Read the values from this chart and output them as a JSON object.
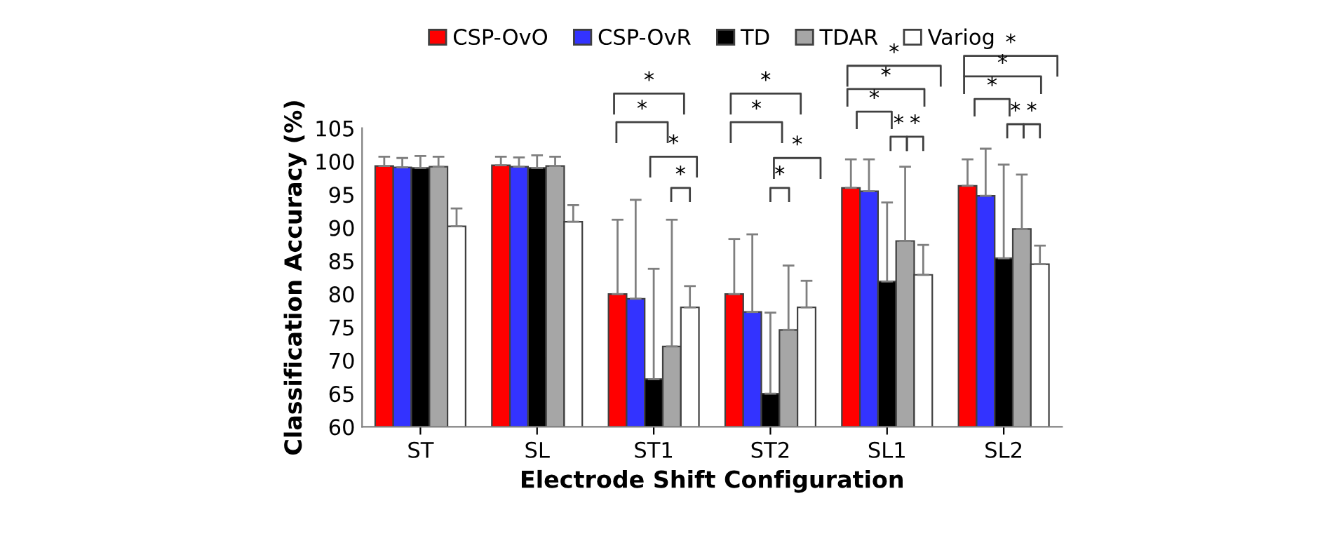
{
  "chart_data": {
    "type": "bar",
    "xlabel": "Electrode Shift Configuration",
    "ylabel": "Classification Accuracy (%)",
    "categories": [
      "ST",
      "SL",
      "ST1",
      "ST2",
      "SL1",
      "SL2"
    ],
    "series": [
      {
        "name": "CSP-OvO",
        "color": "#ff0000",
        "values": [
          99.3,
          99.4,
          80.0,
          80.0,
          96.0,
          96.3
        ],
        "errors": [
          [
            99.3,
            100.7
          ],
          [
            99.4,
            100.7
          ],
          [
            80.0,
            91.2
          ],
          [
            80.0,
            88.3
          ],
          [
            96.0,
            100.3
          ],
          [
            96.3,
            100.3
          ]
        ]
      },
      {
        "name": "CSP-OvR",
        "color": "#3333ff",
        "values": [
          99.1,
          99.2,
          79.3,
          77.3,
          95.5,
          94.8
        ],
        "errors": [
          [
            99.1,
            100.5
          ],
          [
            99.2,
            100.6
          ],
          [
            79.3,
            94.2
          ],
          [
            77.3,
            89.0
          ],
          [
            95.5,
            100.3
          ],
          [
            94.8,
            101.9
          ]
        ]
      },
      {
        "name": "TD",
        "color": "#000000",
        "values": [
          99.0,
          99.0,
          67.2,
          65.0,
          81.9,
          85.4
        ],
        "errors": [
          [
            99.0,
            100.8
          ],
          [
            99.0,
            100.9
          ],
          [
            67.2,
            83.8
          ],
          [
            65.0,
            77.2
          ],
          [
            81.9,
            93.8
          ],
          [
            85.4,
            99.5
          ]
        ]
      },
      {
        "name": "TDAR",
        "color": "#a6a6a6",
        "values": [
          99.2,
          99.3,
          72.1,
          74.6,
          88.0,
          89.8
        ],
        "errors": [
          [
            99.2,
            100.7
          ],
          [
            99.3,
            100.7
          ],
          [
            72.1,
            91.2
          ],
          [
            74.6,
            84.3
          ],
          [
            88.0,
            99.2
          ],
          [
            89.8,
            98.0
          ]
        ]
      },
      {
        "name": "Variog",
        "color": "#ffffff",
        "values": [
          90.2,
          90.9,
          78.0,
          78.0,
          82.9,
          84.5
        ],
        "errors": [
          [
            90.2,
            92.9
          ],
          [
            90.9,
            93.4
          ],
          [
            78.0,
            81.2
          ],
          [
            78.0,
            82.0
          ],
          [
            82.9,
            87.4
          ],
          [
            84.5,
            87.3
          ]
        ]
      }
    ],
    "ylim": [
      60,
      105
    ],
    "yticks": [
      60,
      65,
      70,
      75,
      80,
      85,
      90,
      95,
      100,
      105
    ],
    "grid": false,
    "legend": "top",
    "annotations": [
      "*",
      "*",
      "*",
      "*",
      "*",
      "*",
      "*",
      "*",
      "*",
      "*",
      "*",
      "*",
      "*",
      "*",
      "*",
      "*",
      "*",
      "*"
    ]
  }
}
